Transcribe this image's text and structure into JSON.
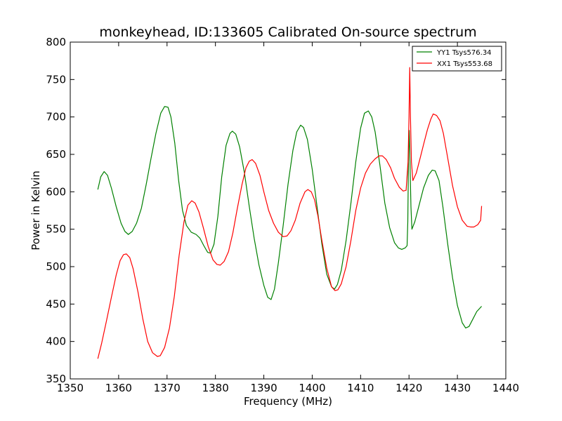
{
  "chart_data": {
    "type": "line",
    "title": "monkeyhead, ID:133605 Calibrated On-source spectrum",
    "xlabel": "Frequency (MHz)",
    "ylabel": "Power in Kelvin",
    "xlim": [
      1350,
      1440
    ],
    "ylim": [
      350,
      800
    ],
    "xticks": [
      1350,
      1360,
      1370,
      1380,
      1390,
      1400,
      1410,
      1420,
      1430,
      1440
    ],
    "yticks": [
      350,
      400,
      450,
      500,
      550,
      600,
      650,
      700,
      750,
      800
    ],
    "grid": false,
    "legend_position": "top-right",
    "series": [
      {
        "name": "YY1 Tsys576.34",
        "color": "#008000",
        "points": [
          [
            1355.7,
            603
          ],
          [
            1356.3,
            620
          ],
          [
            1357.0,
            627
          ],
          [
            1357.7,
            622
          ],
          [
            1358.5,
            605
          ],
          [
            1359.5,
            580
          ],
          [
            1360.5,
            558
          ],
          [
            1361.3,
            547
          ],
          [
            1362.0,
            543
          ],
          [
            1362.8,
            547
          ],
          [
            1363.7,
            558
          ],
          [
            1364.7,
            578
          ],
          [
            1365.7,
            610
          ],
          [
            1366.7,
            645
          ],
          [
            1367.7,
            678
          ],
          [
            1368.7,
            705
          ],
          [
            1369.5,
            714
          ],
          [
            1370.2,
            713
          ],
          [
            1370.8,
            700
          ],
          [
            1371.6,
            665
          ],
          [
            1372.4,
            615
          ],
          [
            1373.2,
            575
          ],
          [
            1374.0,
            555
          ],
          [
            1375.0,
            546
          ],
          [
            1376.0,
            543
          ],
          [
            1376.8,
            538
          ],
          [
            1377.6,
            528
          ],
          [
            1378.4,
            519
          ],
          [
            1379.0,
            518
          ],
          [
            1379.7,
            530
          ],
          [
            1380.5,
            567
          ],
          [
            1381.3,
            620
          ],
          [
            1382.2,
            662
          ],
          [
            1383.0,
            678
          ],
          [
            1383.5,
            681
          ],
          [
            1384.2,
            677
          ],
          [
            1385.0,
            660
          ],
          [
            1386.0,
            625
          ],
          [
            1387.0,
            580
          ],
          [
            1388.0,
            538
          ],
          [
            1389.0,
            502
          ],
          [
            1390.0,
            475
          ],
          [
            1390.8,
            459
          ],
          [
            1391.5,
            456
          ],
          [
            1392.2,
            470
          ],
          [
            1393.0,
            505
          ],
          [
            1394.0,
            555
          ],
          [
            1395.0,
            610
          ],
          [
            1396.0,
            655
          ],
          [
            1396.8,
            680
          ],
          [
            1397.6,
            689
          ],
          [
            1398.2,
            686
          ],
          [
            1399.0,
            670
          ],
          [
            1400.0,
            630
          ],
          [
            1401.0,
            580
          ],
          [
            1402.0,
            530
          ],
          [
            1403.0,
            490
          ],
          [
            1404.0,
            473
          ],
          [
            1404.6,
            470
          ],
          [
            1405.2,
            476
          ],
          [
            1406.0,
            495
          ],
          [
            1407.0,
            535
          ],
          [
            1408.0,
            585
          ],
          [
            1409.0,
            640
          ],
          [
            1410.0,
            685
          ],
          [
            1410.8,
            705
          ],
          [
            1411.6,
            708
          ],
          [
            1412.3,
            700
          ],
          [
            1413.0,
            680
          ],
          [
            1414.0,
            635
          ],
          [
            1415.0,
            585
          ],
          [
            1416.0,
            552
          ],
          [
            1417.0,
            532
          ],
          [
            1417.8,
            525
          ],
          [
            1418.5,
            523
          ],
          [
            1419.2,
            525
          ],
          [
            1419.6,
            528
          ],
          [
            1419.75,
            560
          ],
          [
            1419.9,
            650
          ],
          [
            1420.05,
            682
          ],
          [
            1420.2,
            640
          ],
          [
            1420.4,
            580
          ],
          [
            1420.6,
            550
          ],
          [
            1421.2,
            560
          ],
          [
            1422.0,
            580
          ],
          [
            1423.0,
            605
          ],
          [
            1424.0,
            622
          ],
          [
            1424.8,
            629
          ],
          [
            1425.4,
            628
          ],
          [
            1426.2,
            615
          ],
          [
            1427.0,
            580
          ],
          [
            1428.0,
            530
          ],
          [
            1429.0,
            485
          ],
          [
            1430.0,
            448
          ],
          [
            1431.0,
            425
          ],
          [
            1431.7,
            418
          ],
          [
            1432.4,
            420
          ],
          [
            1433.2,
            430
          ],
          [
            1434.0,
            440
          ],
          [
            1435.0,
            447
          ]
        ]
      },
      {
        "name": "XX1 Tsys553.68",
        "color": "#ff0000",
        "points": [
          [
            1355.7,
            377
          ],
          [
            1356.5,
            398
          ],
          [
            1357.5,
            428
          ],
          [
            1358.5,
            459
          ],
          [
            1359.5,
            489
          ],
          [
            1360.3,
            508
          ],
          [
            1361.0,
            516
          ],
          [
            1361.6,
            517
          ],
          [
            1362.3,
            512
          ],
          [
            1363.0,
            497
          ],
          [
            1364.0,
            466
          ],
          [
            1365.0,
            430
          ],
          [
            1366.0,
            400
          ],
          [
            1367.0,
            385
          ],
          [
            1368.0,
            380
          ],
          [
            1368.6,
            381
          ],
          [
            1369.5,
            392
          ],
          [
            1370.5,
            418
          ],
          [
            1371.5,
            460
          ],
          [
            1372.5,
            515
          ],
          [
            1373.5,
            560
          ],
          [
            1374.3,
            582
          ],
          [
            1375.1,
            588
          ],
          [
            1375.8,
            585
          ],
          [
            1376.6,
            573
          ],
          [
            1377.5,
            552
          ],
          [
            1378.5,
            527
          ],
          [
            1379.5,
            509
          ],
          [
            1380.3,
            503
          ],
          [
            1381.0,
            502
          ],
          [
            1381.8,
            507
          ],
          [
            1382.7,
            520
          ],
          [
            1383.6,
            545
          ],
          [
            1384.5,
            577
          ],
          [
            1385.5,
            610
          ],
          [
            1386.3,
            632
          ],
          [
            1387.0,
            641
          ],
          [
            1387.6,
            643
          ],
          [
            1388.3,
            638
          ],
          [
            1389.2,
            622
          ],
          [
            1390.0,
            600
          ],
          [
            1391.0,
            575
          ],
          [
            1392.0,
            558
          ],
          [
            1393.0,
            546
          ],
          [
            1394.0,
            540
          ],
          [
            1394.8,
            541
          ],
          [
            1395.6,
            548
          ],
          [
            1396.5,
            562
          ],
          [
            1397.5,
            585
          ],
          [
            1398.5,
            600
          ],
          [
            1399.1,
            603
          ],
          [
            1399.8,
            600
          ],
          [
            1400.5,
            589
          ],
          [
            1401.2,
            567
          ],
          [
            1402.0,
            535
          ],
          [
            1403.0,
            498
          ],
          [
            1404.0,
            473
          ],
          [
            1404.7,
            468
          ],
          [
            1405.3,
            469
          ],
          [
            1406.0,
            477
          ],
          [
            1407.0,
            500
          ],
          [
            1408.0,
            535
          ],
          [
            1409.0,
            575
          ],
          [
            1410.0,
            605
          ],
          [
            1411.0,
            625
          ],
          [
            1412.0,
            637
          ],
          [
            1413.0,
            644
          ],
          [
            1413.8,
            648
          ],
          [
            1414.5,
            648
          ],
          [
            1415.3,
            643
          ],
          [
            1416.2,
            632
          ],
          [
            1417.0,
            618
          ],
          [
            1418.0,
            606
          ],
          [
            1418.8,
            601
          ],
          [
            1419.4,
            602
          ],
          [
            1419.8,
            640
          ],
          [
            1420.0,
            700
          ],
          [
            1420.15,
            766
          ],
          [
            1420.3,
            700
          ],
          [
            1420.5,
            640
          ],
          [
            1420.8,
            615
          ],
          [
            1421.5,
            625
          ],
          [
            1422.3,
            645
          ],
          [
            1423.0,
            663
          ],
          [
            1423.8,
            683
          ],
          [
            1424.5,
            697
          ],
          [
            1425.0,
            704
          ],
          [
            1425.7,
            702
          ],
          [
            1426.4,
            695
          ],
          [
            1427.1,
            678
          ],
          [
            1428.0,
            645
          ],
          [
            1429.0,
            608
          ],
          [
            1430.0,
            580
          ],
          [
            1431.0,
            562
          ],
          [
            1432.0,
            554
          ],
          [
            1432.7,
            553
          ],
          [
            1433.4,
            553
          ],
          [
            1434.2,
            556
          ],
          [
            1434.8,
            562
          ],
          [
            1435.0,
            581
          ]
        ]
      }
    ]
  }
}
